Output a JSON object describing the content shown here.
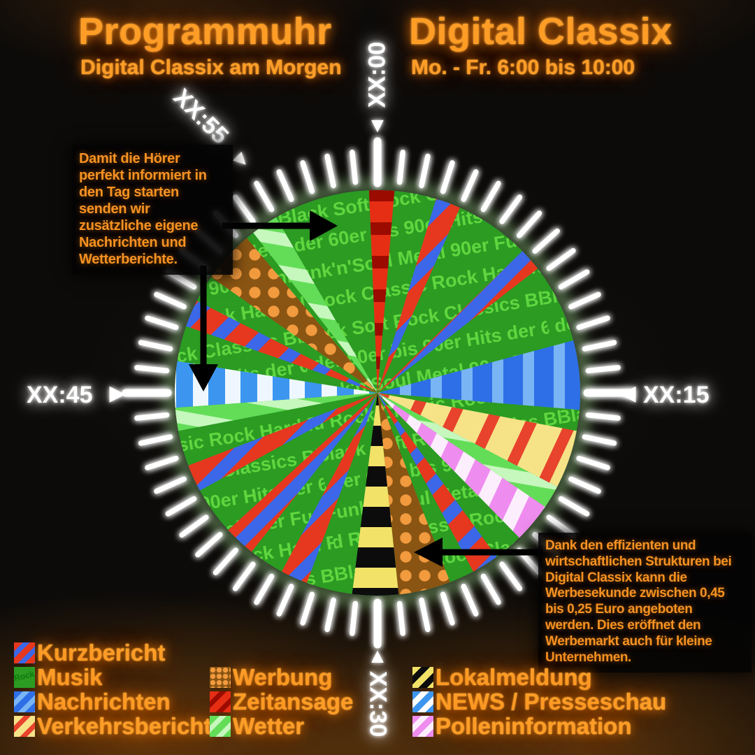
{
  "header": {
    "left_title": "Programmuhr",
    "left_subtitle": "Digital Classix am Morgen",
    "right_title": "Digital Classix",
    "right_subtitle": "Mo. - Fr. 6:00 bis 10:00"
  },
  "clock": {
    "xx00": "XX:00",
    "xx15": "XX:15",
    "xx30": "XX:30",
    "xx45": "XX:45",
    "xx55": "XX:55"
  },
  "annotations": {
    "morning_news": "Damit die Hörer\nperfekt informiert in\nden Tag starten\nsenden wir\nzusätzliche eigene\nNachrichten und\nWetterberichte.",
    "advertising": "Dank den effizienten und\nwirtschaftlichen Strukturen bei\nDigital Classix kann die\nWerbesekunde zwischen 0,45\nbis 0,25 Euro angeboten\nwerden. Dies eröffnet den\nWerbemarkt auch für kleine\nUnternehmen."
  },
  "legend": {
    "col1": [
      {
        "label": "Kurzbericht"
      },
      {
        "label": "Musik",
        "swatch_text": "Rock"
      },
      {
        "label": "Nachrichten"
      },
      {
        "label": "Verkehrsbericht"
      }
    ],
    "col2": [
      {
        "label": "Werbung"
      },
      {
        "label": "Zeitansage"
      },
      {
        "label": "Wetter"
      }
    ],
    "col3": [
      {
        "label": "Lokalmeldung"
      },
      {
        "label": "NEWS / Presseschau"
      },
      {
        "label": "Polleninformation"
      }
    ]
  },
  "chart_data": {
    "type": "pie",
    "title": "Programmuhr Digital Classix am Morgen",
    "period": "Mo. - Fr. 6:00 bis 10:00",
    "unit": "minutes of each hour on a 60-minute clock face",
    "base_category": "Musik",
    "legend_position": "bottom",
    "segments": [
      {
        "category": "Zeitansage",
        "start": 59.6,
        "end": 60.8
      },
      {
        "category": "Kurzbericht",
        "start": 2.8,
        "end": 4.0
      },
      {
        "category": "Kurzbericht",
        "start": 7.6,
        "end": 8.7
      },
      {
        "category": "Nachrichten",
        "start": 12.5,
        "end": 15.8
      },
      {
        "category": "Verkehrsbericht",
        "start": 16.8,
        "end": 19.6
      },
      {
        "category": "Wetter",
        "start": 19.6,
        "end": 20.7
      },
      {
        "category": "Polleninformation",
        "start": 20.7,
        "end": 22.6
      },
      {
        "category": "Kurzbericht",
        "start": 24.0,
        "end": 25.3
      },
      {
        "category": "Werbung",
        "start": 26.5,
        "end": 29.0
      },
      {
        "category": "Lokalmeldung",
        "start": 29.0,
        "end": 31.2
      },
      {
        "category": "Kurzbericht",
        "start": 33.4,
        "end": 34.7
      },
      {
        "category": "Kurzbericht",
        "start": 36.4,
        "end": 37.9
      },
      {
        "category": "Kurzbericht",
        "start": 40.2,
        "end": 41.5
      },
      {
        "category": "Wetter",
        "start": 43.2,
        "end": 44.3
      },
      {
        "category": "NEWS / Presseschau",
        "start": 44.3,
        "end": 46.5
      },
      {
        "category": "Kurzbericht",
        "start": 48.2,
        "end": 49.5
      },
      {
        "category": "Werbung",
        "start": 50.8,
        "end": 53.3
      },
      {
        "category": "Wetter",
        "start": 53.7,
        "end": 55.0
      }
    ],
    "texture_rows": [
      "Black Soft Rock Classics",
      "Hits der 60er bis 90er",
      "Funk'n'Soul Metal 90er",
      "Hard Rock Classic Rock"
    ],
    "colors": {
      "accent_orange": "#ff9d26",
      "musik_bg": "#2b9b22",
      "musik_text": "#5fd73f",
      "zeitansage": [
        "#e62e14",
        "#9b0b00"
      ],
      "kurzbericht": [
        "#e6371f",
        "#3b67e8"
      ],
      "nachrichten": [
        "#2e6fe8",
        "#79b5f4"
      ],
      "news": [
        "#3c96f0",
        "#eef7ff"
      ],
      "verkehrsbericht": [
        "#f6e388",
        "#e8432c"
      ],
      "wetter": [
        "#63dd58",
        "#c6f7bd"
      ],
      "polleninformation": [
        "#ef8cef",
        "#fdeefd"
      ],
      "lokalmeldung": [
        "#f2e268",
        "#0c0c0c"
      ],
      "werbung": [
        "#8a5513",
        "#f29a3e"
      ]
    }
  }
}
